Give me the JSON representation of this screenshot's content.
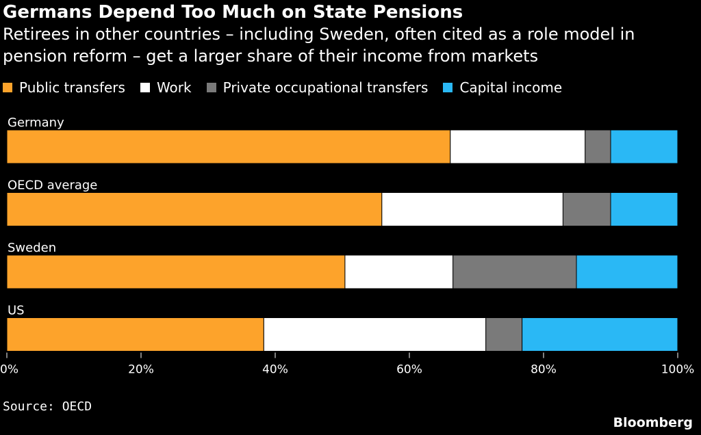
{
  "title": "Germans Depend Too Much on State Pensions",
  "subtitle": "Retirees in other countries – including Sweden, often cited as a role model in pension reform – get a larger share of their income from markets",
  "source": "Source: OECD",
  "brand": "Bloomberg",
  "chart_data": {
    "type": "bar",
    "orientation": "horizontal",
    "stacked": true,
    "categories": [
      "Germany",
      "OECD average",
      "Sweden",
      "US"
    ],
    "series": [
      {
        "name": "Public transfers",
        "color": "#fda32b",
        "values": [
          66.1,
          55.9,
          50.4,
          38.3
        ]
      },
      {
        "name": "Work",
        "color": "#ffffff",
        "values": [
          20.1,
          27.0,
          16.1,
          33.1
        ]
      },
      {
        "name": "Private occupational transfers",
        "color": "#7a7a7a",
        "values": [
          3.8,
          7.1,
          18.4,
          5.4
        ]
      },
      {
        "name": "Capital income",
        "color": "#2ab8f5",
        "values": [
          10.0,
          10.0,
          15.1,
          23.2
        ]
      }
    ],
    "xlim": [
      0,
      100
    ],
    "xticks": [
      "0%",
      "20%",
      "40%",
      "60%",
      "80%",
      "100%"
    ],
    "legend_position": "top",
    "grid": false
  }
}
